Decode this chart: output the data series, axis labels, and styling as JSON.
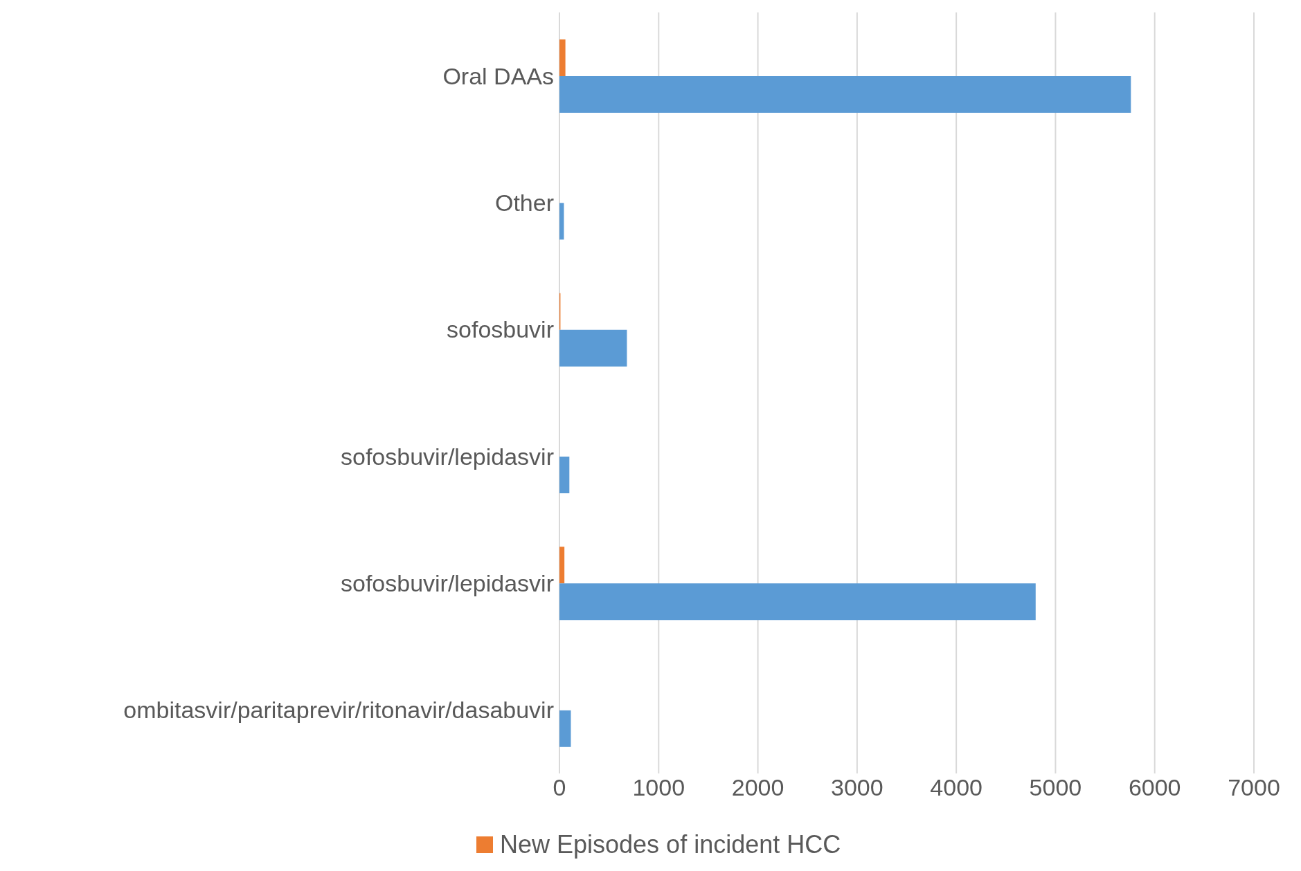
{
  "chart_data": {
    "type": "bar",
    "orientation": "horizontal",
    "categories": [
      "Oral DAAs",
      "Other",
      "sofosbuvir",
      "sofosbuvir/lepidasvir",
      "sofosbuvir/lepidasvir",
      "ombitasvir/paritaprevir/ritonavir/dasabuvir"
    ],
    "series": [
      {
        "name": "New Episodes of incident HCC",
        "color": "#ed7d31",
        "values": [
          60,
          0,
          10,
          null,
          50,
          null
        ]
      },
      {
        "color": "#5b9bd5",
        "values": [
          5760,
          45,
          680,
          100,
          4800,
          115
        ]
      }
    ],
    "xlim": [
      0,
      7000
    ],
    "xticks": [
      0,
      1000,
      2000,
      3000,
      4000,
      5000,
      6000,
      7000
    ],
    "grid": "x",
    "legend": "bottom"
  }
}
